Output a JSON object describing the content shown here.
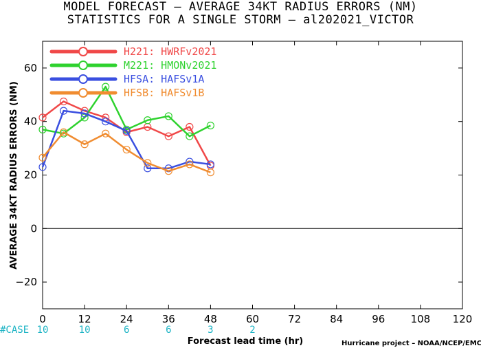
{
  "title_line1": "MODEL FORECAST – AVERAGE 34KT RADIUS ERRORS (NM)",
  "title_line2": "STATISTICS FOR A SINGLE STORM – al202021_VICTOR",
  "credit": "Hurricane project – NOAA/NCEP/EMC",
  "case_label": "#CASE",
  "case_color": "#1bb3c4",
  "chart_data": {
    "type": "line",
    "xlabel": "Forecast lead time (hr)",
    "ylabel": "AVERAGE 34KT RADIUS ERRORS (NM)",
    "xlim": [
      0,
      120
    ],
    "ylim": [
      -30,
      70
    ],
    "xticks": [
      0,
      12,
      24,
      36,
      48,
      60,
      72,
      84,
      96,
      108,
      120
    ],
    "yticks": [
      -20,
      0,
      20,
      40,
      60
    ],
    "zero_line": true,
    "legend_position": "top-left",
    "x": [
      0,
      6,
      12,
      18,
      24,
      30,
      36,
      42,
      48
    ],
    "series": [
      {
        "name": "H221: HWRFv2021",
        "color": "#f04848",
        "values": [
          41.5,
          47.5,
          44,
          41.5,
          36,
          38,
          34.5,
          38,
          23.5
        ]
      },
      {
        "name": "M221: HMONv2021",
        "color": "#2ed22e",
        "values": [
          37,
          35.5,
          41.5,
          53,
          37,
          40.5,
          42,
          34.5,
          38.5
        ]
      },
      {
        "name": "HFSA: HAFSv1A",
        "color": "#3a4fe0",
        "values": [
          23,
          44,
          43,
          40,
          36.5,
          22.5,
          22.5,
          25,
          24
        ]
      },
      {
        "name": "HFSB: HAFSv1B",
        "color": "#f08c30",
        "values": [
          26.5,
          36,
          31.5,
          35.5,
          29.5,
          24.5,
          21.5,
          24,
          21
        ]
      }
    ],
    "cases": [
      {
        "x": 0,
        "count": "10"
      },
      {
        "x": 12,
        "count": "10"
      },
      {
        "x": 24,
        "count": "6"
      },
      {
        "x": 36,
        "count": "6"
      },
      {
        "x": 48,
        "count": "3"
      },
      {
        "x": 60,
        "count": "2"
      }
    ]
  }
}
